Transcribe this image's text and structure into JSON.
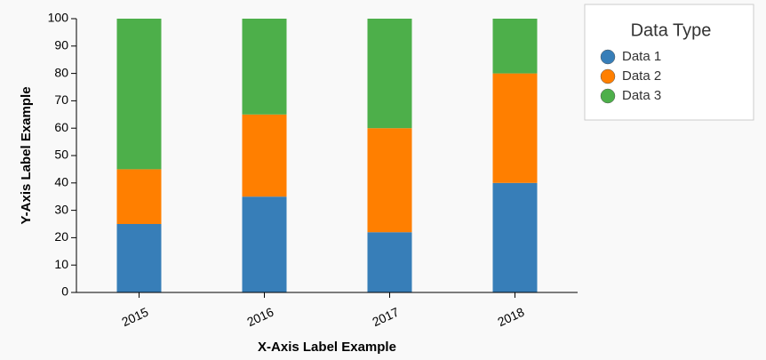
{
  "chart_data": {
    "type": "stacked-bar",
    "x_label": "X-Axis Label Example",
    "y_label": "Y-Axis Label Example",
    "categories": [
      "2015",
      "2016",
      "2017",
      "2018"
    ],
    "series": [
      {
        "name": "Data 1",
        "color": "#377eb8",
        "values": [
          25,
          35,
          22,
          40
        ]
      },
      {
        "name": "Data 2",
        "color": "#ff7f00",
        "values": [
          20,
          30,
          38,
          40
        ]
      },
      {
        "name": "Data 3",
        "color": "#4daf4a",
        "values": [
          55,
          35,
          40,
          20
        ]
      }
    ],
    "ylim": [
      0,
      100
    ],
    "yticks": [
      0,
      10,
      20,
      30,
      40,
      50,
      60,
      70,
      80,
      90,
      100
    ],
    "legend_title": "Data Type",
    "legend_position": "top-right"
  }
}
